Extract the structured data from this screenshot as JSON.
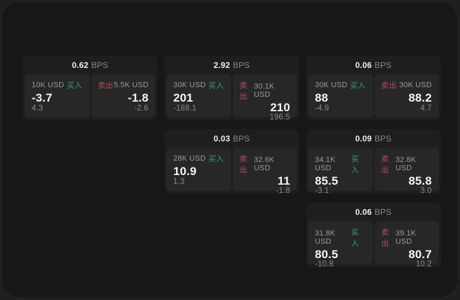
{
  "labels": {
    "bps_unit": "BPS",
    "buy": "买入",
    "sell": "卖出"
  },
  "colors": {
    "page_bg": "#1f1f1f",
    "container_bg": "#171717",
    "card_bg": "#1e1e1e",
    "panel_bg": "#272727",
    "buy_green": "#3ca368",
    "sell_red": "#bd4b5c",
    "primary_text": "#f5f5f5",
    "muted_text": "#8a8a8a"
  },
  "cards": [
    {
      "bps": "0.62",
      "buy": {
        "amount": "10K USD",
        "price": "-3.7",
        "delta": "4.3"
      },
      "sell": {
        "amount": "5.5K USD",
        "price": "-1.8",
        "delta": "-2.6"
      }
    },
    {
      "bps": "2.92",
      "buy": {
        "amount": "30K USD",
        "price": "201",
        "delta": "-188.1"
      },
      "sell": {
        "amount": "30.1K USD",
        "price": "210",
        "delta": "196.5"
      }
    },
    {
      "bps": "0.06",
      "buy": {
        "amount": "30K USD",
        "price": "88",
        "delta": "-4.9"
      },
      "sell": {
        "amount": "30K USD",
        "price": "88.2",
        "delta": "4.7"
      }
    },
    {
      "bps": "0.03",
      "buy": {
        "amount": "28K USD",
        "price": "10.9",
        "delta": "1.3"
      },
      "sell": {
        "amount": "32.6K USD",
        "price": "11",
        "delta": "-1.8"
      }
    },
    {
      "bps": "0.09",
      "buy": {
        "amount": "34.1K USD",
        "price": "85.5",
        "delta": "-3.1"
      },
      "sell": {
        "amount": "32.8K USD",
        "price": "85.8",
        "delta": "3.0"
      }
    },
    {
      "bps": "0.06",
      "buy": {
        "amount": "31.8K USD",
        "price": "80.5",
        "delta": "-10.8"
      },
      "sell": {
        "amount": "39.1K USD",
        "price": "80.7",
        "delta": "10.2"
      }
    }
  ]
}
